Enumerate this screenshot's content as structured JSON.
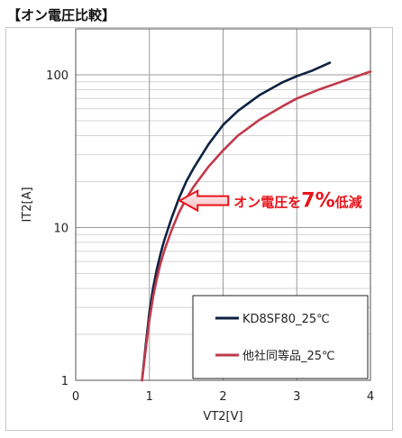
{
  "heading": "【オン電圧比較】",
  "chart_data": {
    "type": "line",
    "title": "",
    "xlabel": "VT2[V]",
    "ylabel": "IT2[A]",
    "xlim": [
      0,
      4
    ],
    "ylim": [
      1,
      200
    ],
    "yscale": "log",
    "xticks": [
      "0",
      "1",
      "2",
      "3",
      "4"
    ],
    "yticks": [
      "1",
      "10",
      "100"
    ],
    "grid": true,
    "legend_position": "bottom-right",
    "series": [
      {
        "name": "KD8SF80_25℃",
        "color": "#0d2240",
        "x": [
          0.9,
          0.95,
          1.0,
          1.05,
          1.1,
          1.15,
          1.2,
          1.3,
          1.4,
          1.5,
          1.6,
          1.8,
          2.0,
          2.2,
          2.5,
          2.8,
          3.0,
          3.2,
          3.45
        ],
        "y": [
          1.0,
          1.7,
          2.8,
          4.0,
          5.3,
          6.7,
          8.2,
          11.5,
          15.5,
          20,
          24.5,
          35,
          47,
          58,
          74,
          89,
          98,
          106,
          120
        ]
      },
      {
        "name": "他社同等品_25℃",
        "color": "#c0394b",
        "x": [
          0.9,
          0.95,
          1.0,
          1.05,
          1.1,
          1.15,
          1.2,
          1.3,
          1.4,
          1.5,
          1.6,
          1.8,
          2.0,
          2.2,
          2.5,
          2.8,
          3.0,
          3.3,
          3.6,
          4.0
        ],
        "y": [
          1.0,
          1.6,
          2.5,
          3.5,
          4.6,
          5.8,
          7.0,
          9.6,
          12.5,
          15.5,
          18.5,
          25,
          32,
          40,
          51,
          62,
          70,
          80,
          90,
          105
        ]
      }
    ],
    "annotation": {
      "prefix": "オン電圧を",
      "highlight": "7%",
      "suffix": "低減",
      "color": "#e8141b"
    }
  }
}
